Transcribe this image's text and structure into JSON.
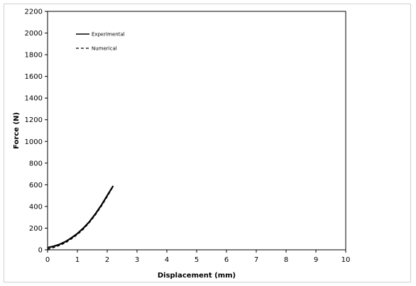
{
  "chart_data": {
    "type": "line",
    "xlabel": "Displacement (mm)",
    "ylabel": "Force (N)",
    "xlim": [
      0,
      10
    ],
    "ylim": [
      0,
      2200
    ],
    "xticks": [
      "0",
      "1",
      "2",
      "3",
      "4",
      "5",
      "6",
      "7",
      "8",
      "9",
      "10"
    ],
    "yticks": [
      "0",
      "200",
      "400",
      "600",
      "800",
      "1000",
      "1200",
      "1400",
      "1600",
      "1800",
      "2000",
      "2200"
    ],
    "grid": false,
    "legend": "top-left",
    "series": [
      {
        "name": "Experimental",
        "style": "solid",
        "color": "#000000",
        "x": [
          0.0,
          0.2,
          0.4,
          0.6,
          0.8,
          1.0,
          1.2,
          1.4,
          1.6,
          1.8,
          2.0,
          2.2
        ],
        "y": [
          20,
          32,
          50,
          75,
          110,
          150,
          200,
          258,
          330,
          410,
          500,
          590
        ]
      },
      {
        "name": "Numerical",
        "style": "dashed",
        "color": "#000000",
        "x": [
          0.0,
          0.2,
          0.4,
          0.6,
          0.8,
          1.0,
          1.2,
          1.4,
          1.6,
          1.8,
          2.0,
          2.2
        ],
        "y": [
          5,
          20,
          40,
          65,
          100,
          140,
          190,
          250,
          320,
          400,
          490,
          585
        ]
      }
    ]
  }
}
